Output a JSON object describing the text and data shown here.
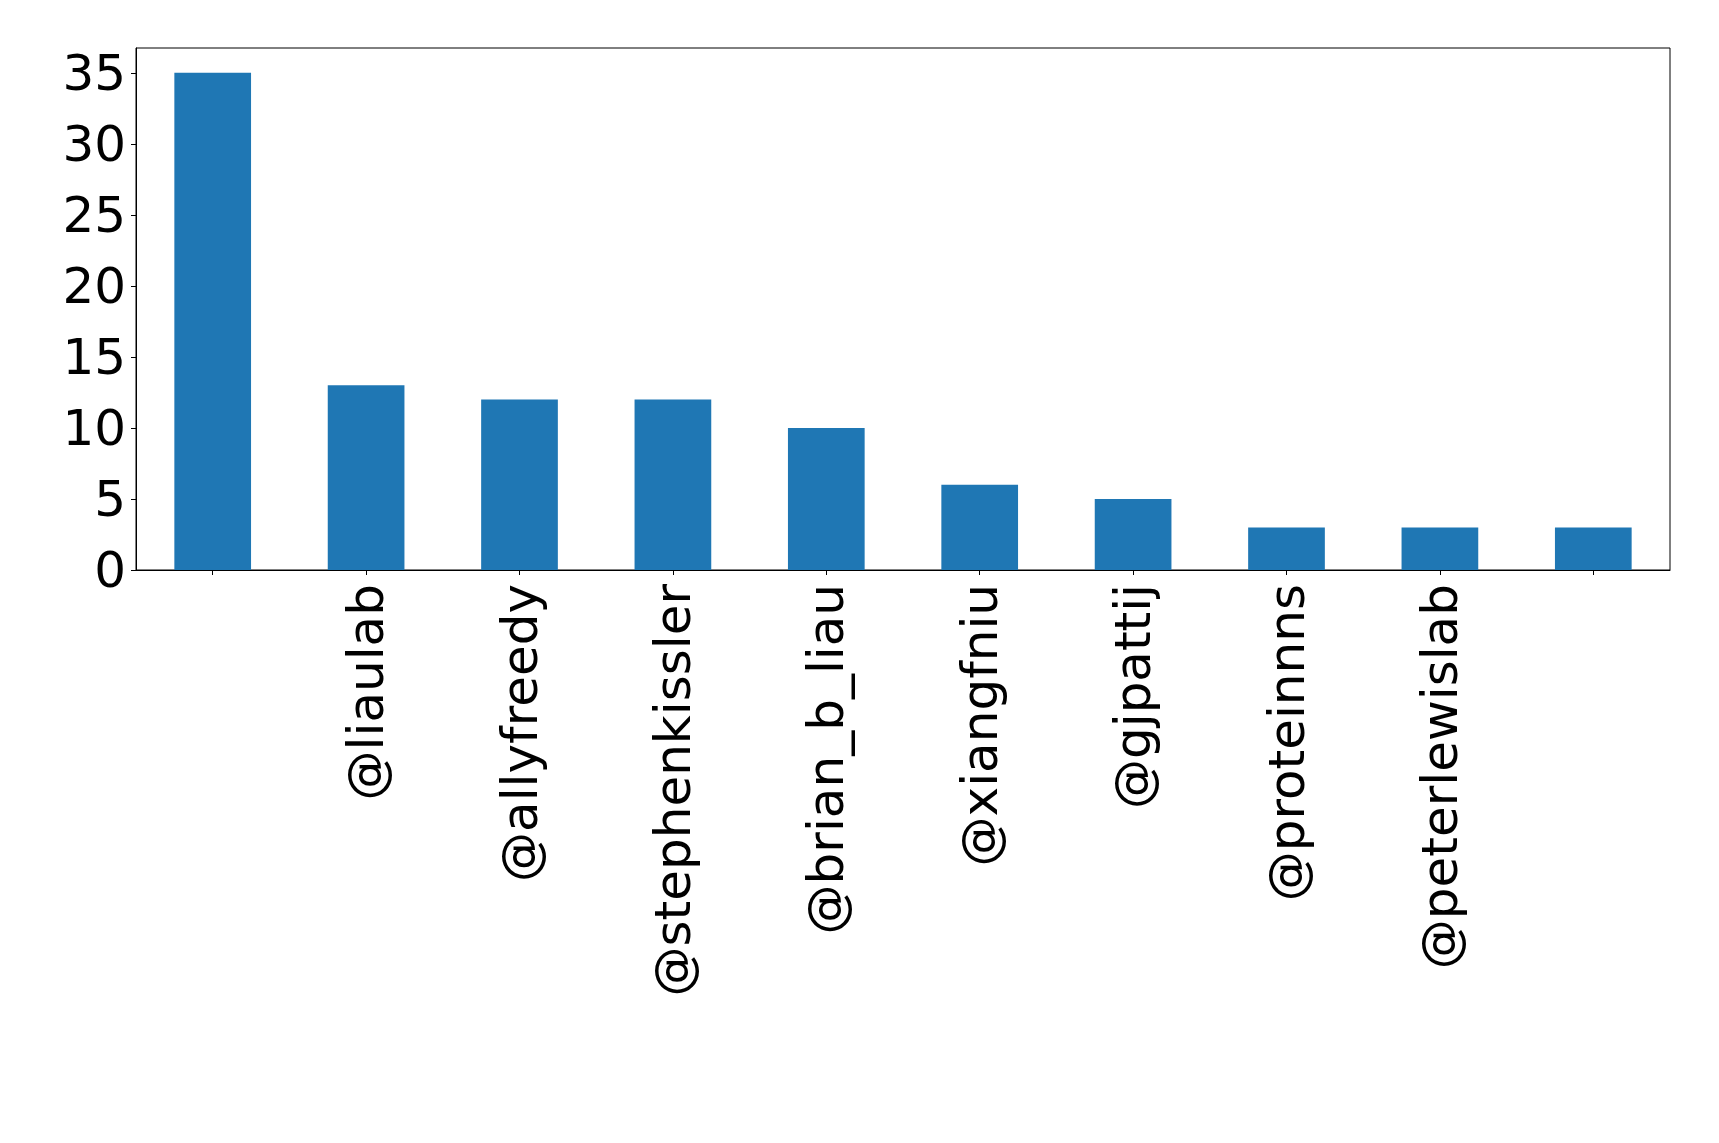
{
  "chart_data": {
    "type": "bar",
    "categories": [
      null,
      "@liaulab",
      "@allyfreedy",
      "@stephenkissler",
      "@brian_b_liau",
      "@xiangfniu",
      "@gjpattij",
      "@proteinnns",
      "@peterlewislab",
      null
    ],
    "values": [
      35,
      13,
      12,
      12,
      10,
      6,
      5,
      3,
      3,
      3
    ],
    "color": "#1f77b4",
    "ylim": [
      0,
      36.75
    ],
    "yticks": [
      0,
      5,
      10,
      15,
      20,
      25,
      30,
      35
    ],
    "grid": false
  }
}
